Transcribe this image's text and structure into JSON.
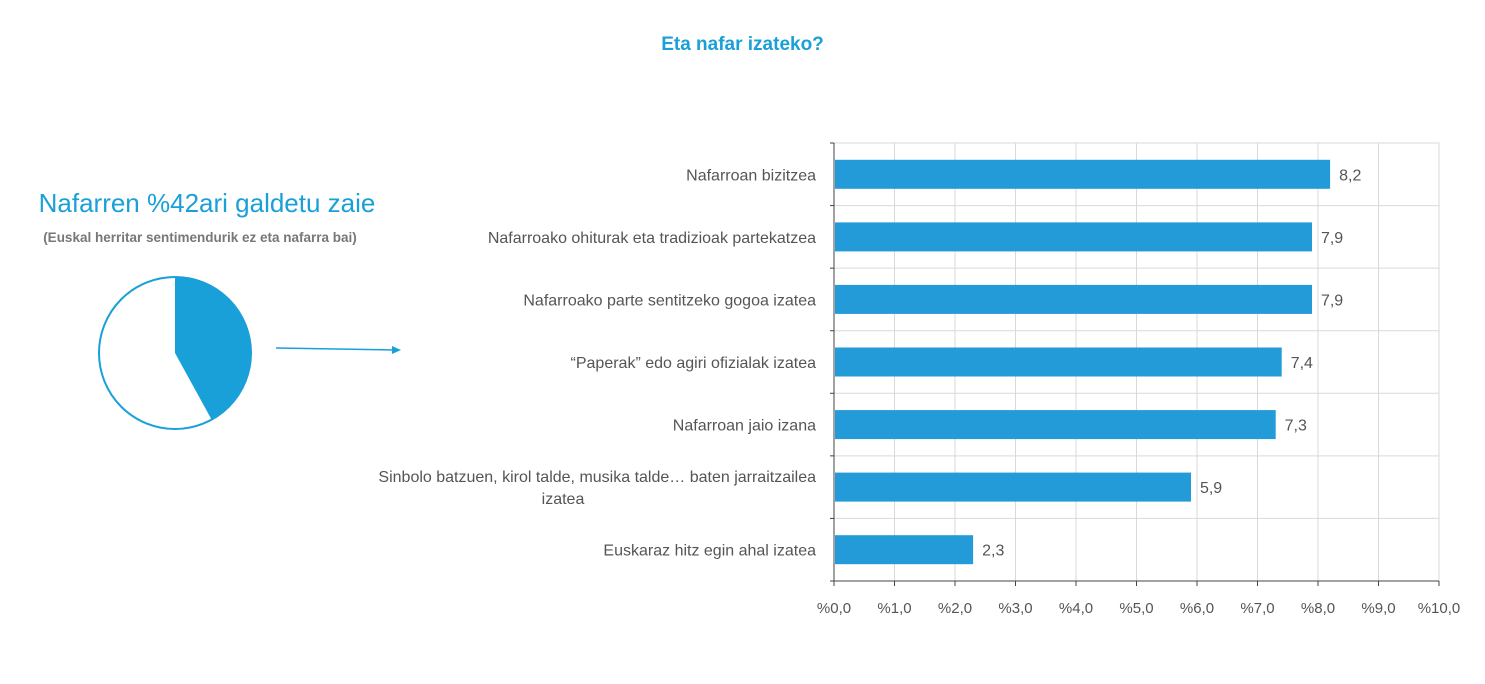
{
  "title": "Eta nafar izateko?",
  "left_panel": {
    "heading": "Nafarren %42ari galdetu zaie",
    "subheading": "(Euskal herritar sentimendurik ez eta nafarra bai)",
    "pie_share": 0.42
  },
  "colors": {
    "accent": "#1aa0d8",
    "bar": "#229bd8",
    "grid": "#d9d9d9",
    "text": "#555555"
  },
  "chart_data": {
    "type": "bar",
    "orientation": "horizontal",
    "categories": [
      "Nafarroan bizitzea",
      "Nafarroako ohiturak eta tradizioak partekatzea",
      "Nafarroako parte sentitzeko gogoa izatea",
      "“Paperak” edo agiri ofizialak izatea",
      "Nafarroan jaio izana",
      "Sinbolo batzuen, kirol talde, musika talde… baten jarraitzailea izatea",
      "Euskaraz hitz egin ahal izatea"
    ],
    "category_lines": [
      [
        "Nafarroan bizitzea"
      ],
      [
        "Nafarroako ohiturak eta tradizioak partekatzea"
      ],
      [
        "Nafarroako parte sentitzeko gogoa izatea"
      ],
      [
        "“Paperak” edo agiri ofizialak izatea"
      ],
      [
        "Nafarroan jaio izana"
      ],
      [
        "Sinbolo batzuen, kirol talde, musika talde… baten jarraitzailea",
        "izatea"
      ],
      [
        "Euskaraz hitz egin ahal izatea"
      ]
    ],
    "values": [
      8.2,
      7.9,
      7.9,
      7.4,
      7.3,
      5.9,
      2.3
    ],
    "value_labels": [
      "8,2",
      "7,9",
      "7,9",
      "7,4",
      "7,3",
      "5,9",
      "2,3"
    ],
    "xlim": [
      0,
      10
    ],
    "xticks": [
      "%0,0",
      "%1,0",
      "%2,0",
      "%3,0",
      "%4,0",
      "%5,0",
      "%6,0",
      "%7,0",
      "%8,0",
      "%9,0",
      "%10,0"
    ],
    "grid": true,
    "legend": "none"
  }
}
